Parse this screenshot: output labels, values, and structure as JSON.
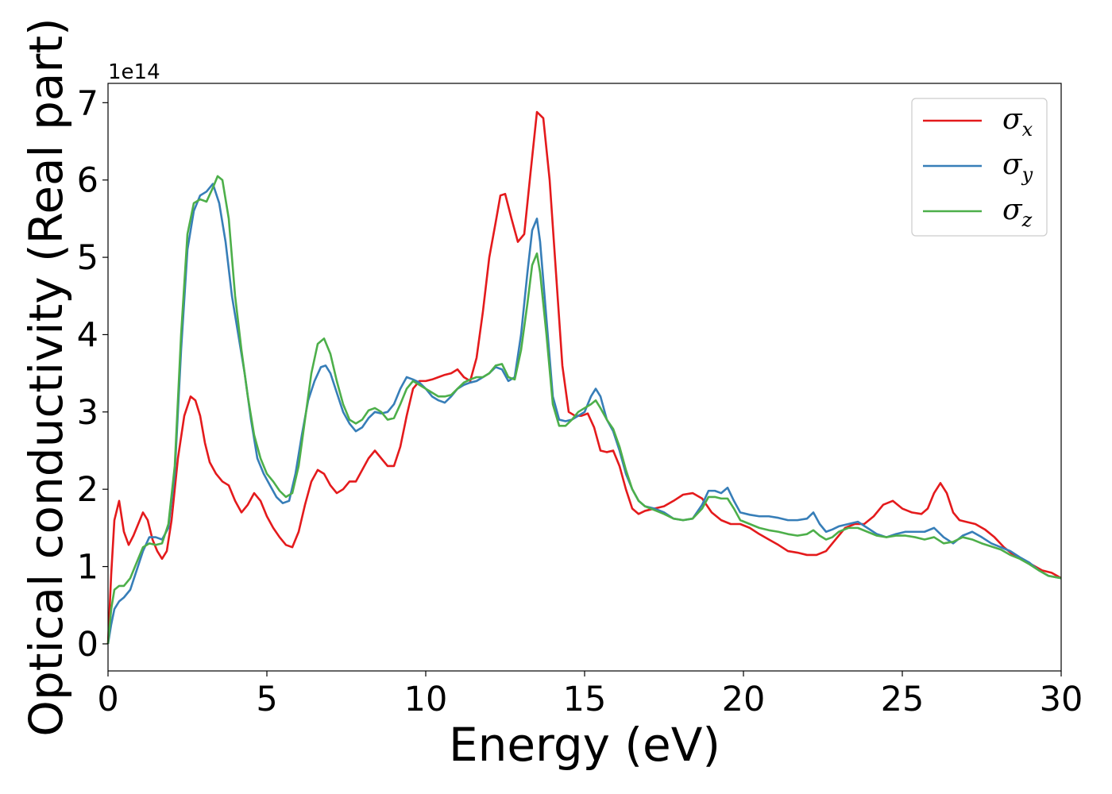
{
  "chart_data": {
    "type": "line",
    "xlabel": "Energy (eV)",
    "ylabel": "Optical conductivity (Real part)",
    "y_offset_label": "1e14",
    "xlim": [
      0,
      30
    ],
    "ylim": [
      -0.35,
      7.25
    ],
    "x_ticks": [
      0,
      5,
      10,
      15,
      20,
      25,
      30
    ],
    "y_ticks": [
      0,
      1,
      2,
      3,
      4,
      5,
      6,
      7
    ],
    "grid": false,
    "legend_position": "top-right",
    "series": [
      {
        "name": "σx",
        "label_base": "σ",
        "label_sub": "x",
        "color": "#e41a1c",
        "x": [
          0,
          0.1,
          0.2,
          0.35,
          0.5,
          0.65,
          0.8,
          0.95,
          1.1,
          1.25,
          1.4,
          1.55,
          1.7,
          1.85,
          2.0,
          2.2,
          2.4,
          2.6,
          2.75,
          2.9,
          3.05,
          3.2,
          3.4,
          3.6,
          3.8,
          4.0,
          4.2,
          4.4,
          4.6,
          4.8,
          5.0,
          5.2,
          5.4,
          5.6,
          5.8,
          6.0,
          6.2,
          6.4,
          6.6,
          6.8,
          7.0,
          7.2,
          7.4,
          7.6,
          7.8,
          8.0,
          8.2,
          8.4,
          8.6,
          8.8,
          9.0,
          9.2,
          9.4,
          9.6,
          9.8,
          10.0,
          10.2,
          10.4,
          10.6,
          10.8,
          11.0,
          11.2,
          11.4,
          11.6,
          11.8,
          12.0,
          12.2,
          12.35,
          12.5,
          12.7,
          12.9,
          13.1,
          13.3,
          13.5,
          13.7,
          13.9,
          14.1,
          14.3,
          14.5,
          14.7,
          14.9,
          15.1,
          15.3,
          15.5,
          15.7,
          15.9,
          16.1,
          16.3,
          16.5,
          16.7,
          16.9,
          17.2,
          17.5,
          17.8,
          18.1,
          18.4,
          18.7,
          19.0,
          19.3,
          19.6,
          19.9,
          20.2,
          20.5,
          20.8,
          21.1,
          21.4,
          21.7,
          22.0,
          22.3,
          22.6,
          22.9,
          23.2,
          23.5,
          23.8,
          24.1,
          24.4,
          24.7,
          25.0,
          25.3,
          25.6,
          25.8,
          26.0,
          26.2,
          26.4,
          26.6,
          26.8,
          27.0,
          27.3,
          27.6,
          27.9,
          28.2,
          28.5,
          28.8,
          29.1,
          29.4,
          29.7,
          30.0
        ],
        "values": [
          0.0,
          0.9,
          1.6,
          1.85,
          1.45,
          1.28,
          1.4,
          1.55,
          1.7,
          1.6,
          1.35,
          1.2,
          1.1,
          1.2,
          1.6,
          2.4,
          2.95,
          3.2,
          3.15,
          2.95,
          2.6,
          2.35,
          2.2,
          2.1,
          2.05,
          1.85,
          1.7,
          1.8,
          1.95,
          1.85,
          1.65,
          1.5,
          1.38,
          1.28,
          1.25,
          1.45,
          1.8,
          2.1,
          2.25,
          2.2,
          2.05,
          1.95,
          2.0,
          2.1,
          2.1,
          2.25,
          2.4,
          2.5,
          2.4,
          2.3,
          2.3,
          2.55,
          2.95,
          3.3,
          3.4,
          3.4,
          3.42,
          3.45,
          3.48,
          3.5,
          3.55,
          3.45,
          3.4,
          3.7,
          4.3,
          5.0,
          5.45,
          5.8,
          5.82,
          5.5,
          5.2,
          5.3,
          6.1,
          6.88,
          6.8,
          6.0,
          4.8,
          3.6,
          3.0,
          2.95,
          2.95,
          2.98,
          2.8,
          2.5,
          2.48,
          2.5,
          2.3,
          2.0,
          1.75,
          1.68,
          1.72,
          1.75,
          1.78,
          1.85,
          1.93,
          1.95,
          1.88,
          1.7,
          1.6,
          1.55,
          1.55,
          1.5,
          1.42,
          1.35,
          1.28,
          1.2,
          1.18,
          1.15,
          1.15,
          1.2,
          1.35,
          1.5,
          1.55,
          1.55,
          1.65,
          1.8,
          1.85,
          1.75,
          1.7,
          1.68,
          1.75,
          1.95,
          2.08,
          1.95,
          1.7,
          1.6,
          1.58,
          1.55,
          1.48,
          1.38,
          1.25,
          1.15,
          1.08,
          1.02,
          0.95,
          0.92,
          0.85
        ],
        "dashed": false
      },
      {
        "name": "σy",
        "label_base": "σ",
        "label_sub": "y",
        "color": "#377eb8",
        "x": [
          0,
          0.1,
          0.2,
          0.35,
          0.5,
          0.7,
          0.9,
          1.1,
          1.3,
          1.5,
          1.7,
          1.9,
          2.1,
          2.3,
          2.5,
          2.7,
          2.9,
          3.1,
          3.3,
          3.5,
          3.7,
          3.9,
          4.1,
          4.3,
          4.5,
          4.7,
          4.9,
          5.1,
          5.3,
          5.5,
          5.7,
          5.9,
          6.1,
          6.3,
          6.5,
          6.7,
          6.85,
          7.0,
          7.2,
          7.4,
          7.6,
          7.8,
          8.0,
          8.2,
          8.4,
          8.6,
          8.8,
          9.0,
          9.2,
          9.4,
          9.6,
          9.8,
          10.0,
          10.2,
          10.4,
          10.6,
          10.8,
          11.0,
          11.2,
          11.4,
          11.6,
          11.8,
          12.0,
          12.2,
          12.4,
          12.6,
          12.8,
          13.0,
          13.2,
          13.35,
          13.5,
          13.6,
          13.8,
          14.0,
          14.2,
          14.4,
          14.6,
          14.8,
          15.0,
          15.2,
          15.35,
          15.5,
          15.7,
          15.9,
          16.1,
          16.3,
          16.5,
          16.7,
          16.9,
          17.2,
          17.5,
          17.8,
          18.1,
          18.4,
          18.7,
          18.9,
          19.1,
          19.3,
          19.5,
          19.7,
          19.9,
          20.2,
          20.5,
          20.8,
          21.1,
          21.4,
          21.7,
          22.0,
          22.2,
          22.4,
          22.6,
          22.8,
          23.0,
          23.3,
          23.6,
          23.9,
          24.2,
          24.5,
          24.8,
          25.1,
          25.4,
          25.7,
          26.0,
          26.3,
          26.6,
          26.9,
          27.2,
          27.5,
          27.8,
          28.1,
          28.4,
          28.7,
          29.0,
          29.3,
          29.6,
          30.0
        ],
        "values": [
          0.0,
          0.25,
          0.45,
          0.55,
          0.6,
          0.7,
          0.95,
          1.2,
          1.38,
          1.38,
          1.35,
          1.5,
          2.2,
          3.8,
          5.1,
          5.6,
          5.8,
          5.85,
          5.95,
          5.7,
          5.2,
          4.5,
          4.0,
          3.5,
          2.9,
          2.4,
          2.2,
          2.05,
          1.9,
          1.82,
          1.85,
          2.2,
          2.7,
          3.15,
          3.4,
          3.58,
          3.6,
          3.5,
          3.25,
          3.0,
          2.85,
          2.75,
          2.8,
          2.92,
          3.0,
          2.98,
          3.0,
          3.1,
          3.3,
          3.45,
          3.42,
          3.38,
          3.3,
          3.2,
          3.15,
          3.12,
          3.2,
          3.3,
          3.35,
          3.38,
          3.4,
          3.45,
          3.5,
          3.58,
          3.55,
          3.4,
          3.45,
          4.0,
          4.8,
          5.35,
          5.5,
          5.2,
          4.2,
          3.2,
          2.9,
          2.88,
          2.9,
          2.95,
          3.0,
          3.2,
          3.3,
          3.2,
          2.9,
          2.75,
          2.5,
          2.2,
          2.0,
          1.85,
          1.78,
          1.75,
          1.7,
          1.62,
          1.6,
          1.62,
          1.8,
          1.98,
          1.98,
          1.95,
          2.02,
          1.85,
          1.7,
          1.67,
          1.65,
          1.65,
          1.63,
          1.6,
          1.6,
          1.62,
          1.7,
          1.55,
          1.45,
          1.48,
          1.52,
          1.55,
          1.58,
          1.5,
          1.42,
          1.38,
          1.42,
          1.45,
          1.45,
          1.45,
          1.5,
          1.38,
          1.3,
          1.4,
          1.45,
          1.38,
          1.3,
          1.25,
          1.2,
          1.12,
          1.05,
          0.95,
          0.88,
          0.85
        ],
        "dashed": false
      },
      {
        "name": "σz",
        "label_base": "σ",
        "label_sub": "z",
        "color": "#4daf4a",
        "x": [
          0,
          0.1,
          0.2,
          0.35,
          0.5,
          0.7,
          0.9,
          1.1,
          1.3,
          1.5,
          1.7,
          1.9,
          2.1,
          2.3,
          2.5,
          2.7,
          2.9,
          3.1,
          3.3,
          3.45,
          3.6,
          3.8,
          4.0,
          4.2,
          4.4,
          4.6,
          4.8,
          5.0,
          5.2,
          5.4,
          5.6,
          5.8,
          6.0,
          6.2,
          6.4,
          6.6,
          6.8,
          7.0,
          7.2,
          7.4,
          7.6,
          7.8,
          8.0,
          8.2,
          8.4,
          8.6,
          8.8,
          9.0,
          9.2,
          9.4,
          9.6,
          9.8,
          10.0,
          10.2,
          10.4,
          10.6,
          10.8,
          11.0,
          11.2,
          11.4,
          11.6,
          11.8,
          12.0,
          12.2,
          12.4,
          12.6,
          12.8,
          13.0,
          13.2,
          13.35,
          13.5,
          13.6,
          13.8,
          14.0,
          14.2,
          14.4,
          14.6,
          14.8,
          15.0,
          15.2,
          15.35,
          15.5,
          15.7,
          15.9,
          16.1,
          16.3,
          16.5,
          16.7,
          16.9,
          17.2,
          17.5,
          17.8,
          18.1,
          18.4,
          18.7,
          18.9,
          19.1,
          19.3,
          19.5,
          19.7,
          19.9,
          20.2,
          20.5,
          20.8,
          21.1,
          21.4,
          21.7,
          22.0,
          22.2,
          22.4,
          22.6,
          22.8,
          23.0,
          23.3,
          23.6,
          23.9,
          24.2,
          24.5,
          24.8,
          25.1,
          25.4,
          25.7,
          26.0,
          26.3,
          26.6,
          26.9,
          27.2,
          27.5,
          27.8,
          28.1,
          28.4,
          28.7,
          29.0,
          29.3,
          29.6,
          30.0
        ],
        "values": [
          0.0,
          0.45,
          0.7,
          0.75,
          0.75,
          0.85,
          1.05,
          1.25,
          1.3,
          1.28,
          1.3,
          1.55,
          2.3,
          4.0,
          5.3,
          5.7,
          5.75,
          5.72,
          5.9,
          6.05,
          6.0,
          5.5,
          4.5,
          3.8,
          3.2,
          2.7,
          2.4,
          2.2,
          2.1,
          1.98,
          1.9,
          1.95,
          2.3,
          2.9,
          3.5,
          3.88,
          3.95,
          3.75,
          3.4,
          3.1,
          2.9,
          2.85,
          2.9,
          3.02,
          3.05,
          3.0,
          2.9,
          2.92,
          3.1,
          3.3,
          3.4,
          3.35,
          3.3,
          3.25,
          3.2,
          3.2,
          3.22,
          3.3,
          3.38,
          3.42,
          3.45,
          3.45,
          3.5,
          3.6,
          3.62,
          3.45,
          3.42,
          3.8,
          4.4,
          4.9,
          5.05,
          4.8,
          4.0,
          3.1,
          2.82,
          2.82,
          2.9,
          3.0,
          3.05,
          3.1,
          3.15,
          3.05,
          2.9,
          2.78,
          2.55,
          2.25,
          2.0,
          1.85,
          1.78,
          1.73,
          1.68,
          1.62,
          1.6,
          1.62,
          1.75,
          1.9,
          1.9,
          1.88,
          1.88,
          1.75,
          1.6,
          1.55,
          1.5,
          1.47,
          1.45,
          1.42,
          1.4,
          1.42,
          1.47,
          1.4,
          1.35,
          1.38,
          1.45,
          1.5,
          1.5,
          1.45,
          1.4,
          1.38,
          1.4,
          1.4,
          1.38,
          1.35,
          1.38,
          1.3,
          1.32,
          1.38,
          1.35,
          1.3,
          1.26,
          1.22,
          1.15,
          1.1,
          1.03,
          0.95,
          0.88,
          0.85
        ],
        "dashed": false
      }
    ]
  }
}
